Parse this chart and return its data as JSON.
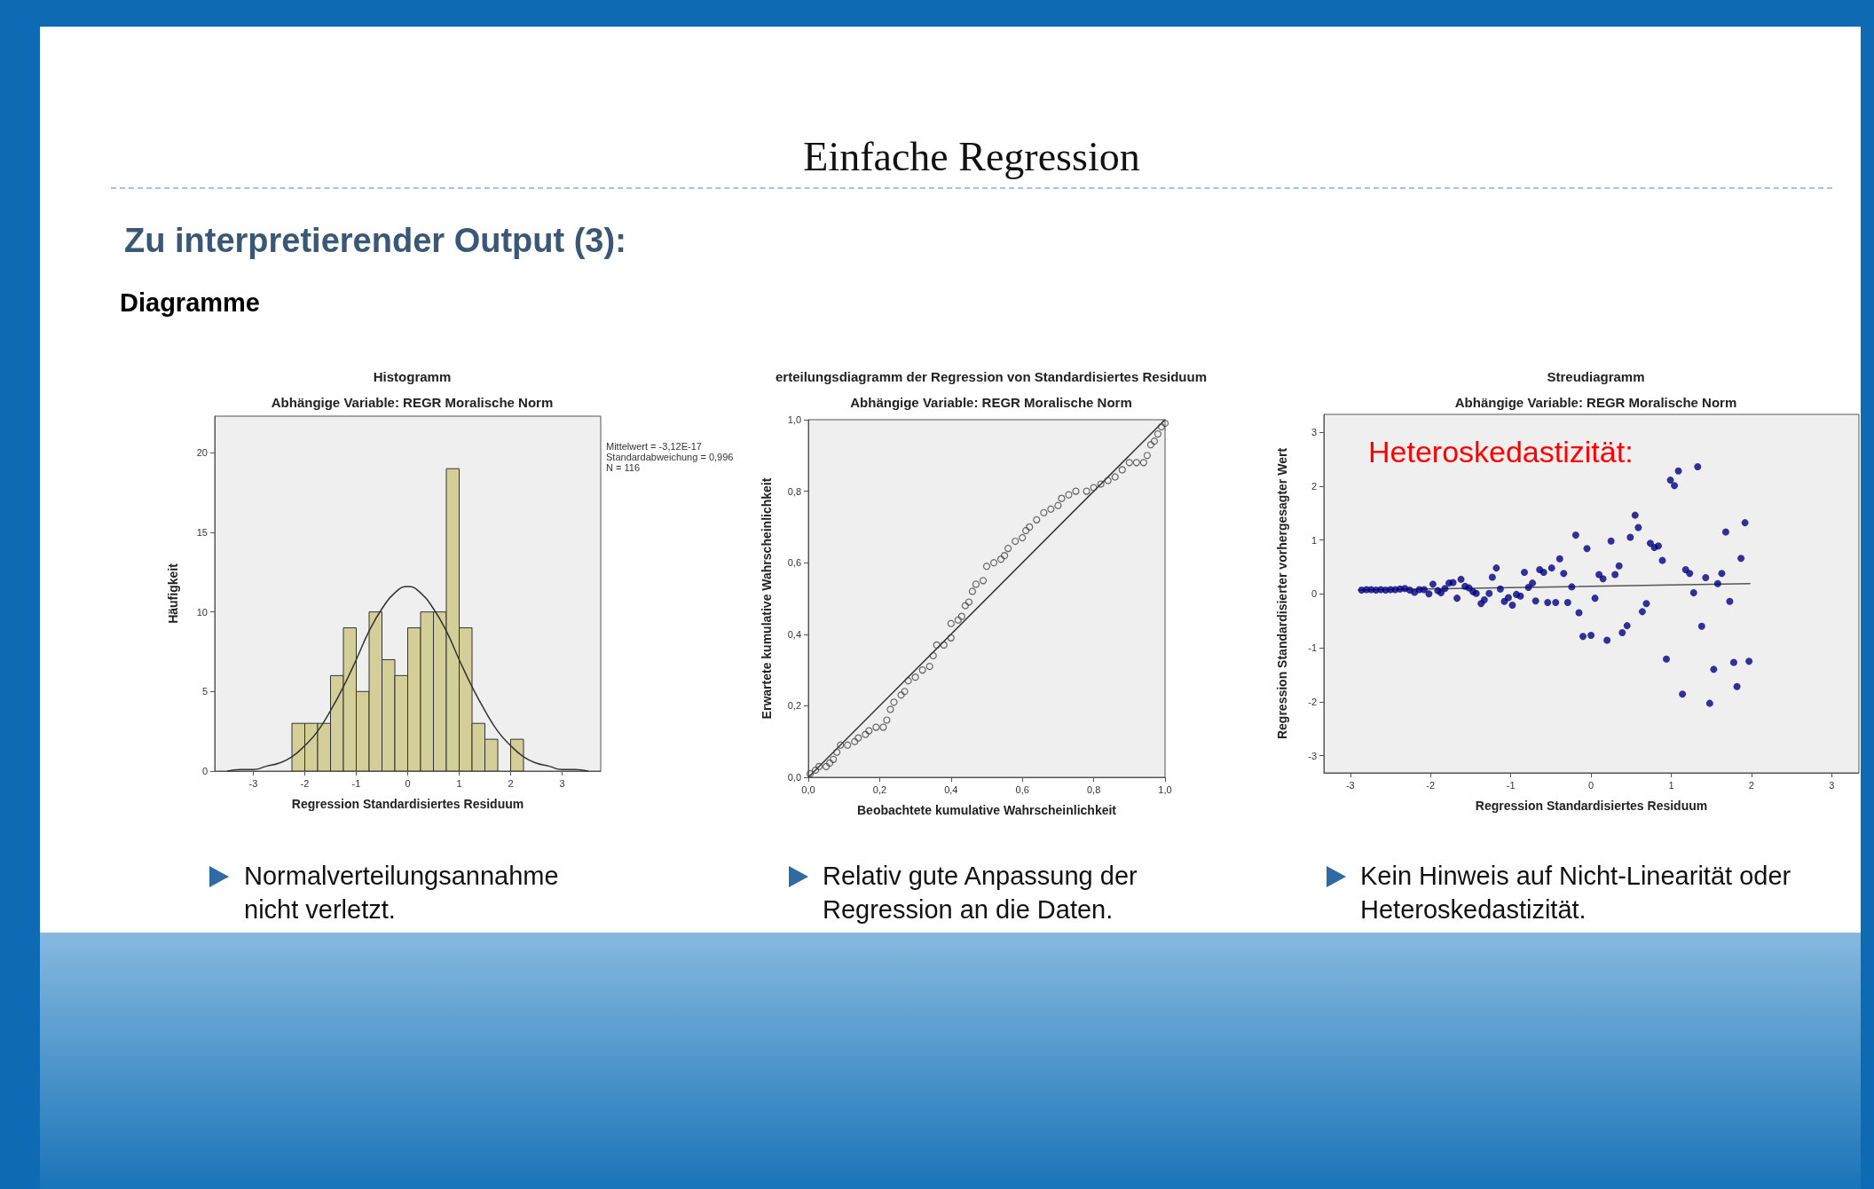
{
  "chart_data": [
    {
      "type": "other",
      "title": "Einfache Regression",
      "subtitle": "Zu interpretierender Output (3):",
      "annotations": [
        "Diagramme"
      ]
    },
    {
      "type": "histogram",
      "title": "Histogramm",
      "subtitle": "Abhängige Variable: REGR Moralische Norm",
      "xlabel": "Regression Standardisiertes Residuum",
      "ylabel": "Häufigkeit",
      "bins": [
        -2.25,
        -2,
        -1.75,
        -1.5,
        -1.25,
        -1,
        -0.75,
        -0.5,
        -0.25,
        0,
        0.25,
        0.5,
        0.75,
        1,
        1.25,
        1.5,
        1.75,
        2,
        2.25
      ],
      "values": [
        3,
        3,
        3,
        6,
        9,
        5,
        10,
        7,
        6,
        9,
        10,
        10,
        19,
        9,
        3,
        2,
        0,
        2
      ],
      "color": "#d4cf98",
      "series": [
        {
          "type": "line",
          "color": "#333333",
          "x": [
            -3.5,
            -3.25,
            -3,
            -2.75,
            -2.5,
            -2.25,
            -2,
            -1.75,
            -1.5,
            -1.25,
            -1,
            -0.75,
            -0.5,
            -0.25,
            0,
            0.25,
            0.5,
            0.75,
            1,
            1.25,
            1.5,
            1.75,
            2,
            2.25,
            2.5,
            2.75,
            3,
            3.25,
            3.5
          ],
          "values": [
            0.0,
            0.1,
            0.1,
            0.3,
            0.5,
            0.9,
            1.6,
            2.5,
            3.8,
            5.3,
            7.0,
            8.8,
            10.2,
            11.2,
            11.6,
            11.2,
            10.2,
            8.8,
            7.0,
            5.3,
            3.8,
            2.5,
            1.6,
            0.9,
            0.5,
            0.3,
            0.1,
            0.1,
            0.0
          ]
        }
      ],
      "xlim": [
        -3.75,
        3.75
      ],
      "xticks": [
        -3,
        -2,
        -1,
        0,
        1,
        2,
        3
      ],
      "ylim": [
        0,
        22.3
      ],
      "yticks": [
        0,
        5,
        10,
        15,
        20
      ],
      "annotations": [
        "Mittelwert = -3,12E-17",
        "Standardabweichung = 0,996",
        "N = 116",
        "Normalverteilungsannahme nicht verletzt."
      ]
    },
    {
      "type": "scatter",
      "title": "erteilungsdiagramm der Regression von Standardisiertes Residuum",
      "subtitle": "Abhängige Variable: REGR Moralische Norm",
      "xlabel": "Beobachtete kumulative Wahrscheinlichkeit",
      "ylabel": "Erwartete kumulative Wahrscheinlichkeit",
      "marker": "circle",
      "series": [
        {
          "type": "scatter",
          "color": "#444444",
          "x": [
            0.005,
            0.02,
            0.03,
            0.05,
            0.06,
            0.07,
            0.08,
            0.09,
            0.11,
            0.13,
            0.14,
            0.16,
            0.17,
            0.19,
            0.21,
            0.22,
            0.23,
            0.24,
            0.26,
            0.27,
            0.28,
            0.3,
            0.32,
            0.34,
            0.35,
            0.36,
            0.38,
            0.4,
            0.4,
            0.42,
            0.43,
            0.44,
            0.45,
            0.46,
            0.47,
            0.49,
            0.5,
            0.52,
            0.54,
            0.55,
            0.56,
            0.58,
            0.6,
            0.61,
            0.62,
            0.64,
            0.66,
            0.68,
            0.7,
            0.71,
            0.73,
            0.75,
            0.78,
            0.8,
            0.82,
            0.84,
            0.86,
            0.88,
            0.9,
            0.92,
            0.94,
            0.95,
            0.96,
            0.97,
            0.98,
            0.99,
            1.0
          ],
          "values": [
            0.01,
            0.02,
            0.03,
            0.03,
            0.04,
            0.05,
            0.07,
            0.09,
            0.09,
            0.1,
            0.11,
            0.12,
            0.13,
            0.14,
            0.14,
            0.16,
            0.19,
            0.21,
            0.23,
            0.24,
            0.27,
            0.28,
            0.3,
            0.31,
            0.34,
            0.37,
            0.37,
            0.39,
            0.43,
            0.44,
            0.45,
            0.48,
            0.49,
            0.52,
            0.54,
            0.55,
            0.59,
            0.6,
            0.61,
            0.62,
            0.64,
            0.66,
            0.67,
            0.69,
            0.7,
            0.72,
            0.74,
            0.75,
            0.76,
            0.78,
            0.79,
            0.8,
            0.8,
            0.81,
            0.82,
            0.83,
            0.84,
            0.86,
            0.88,
            0.88,
            0.88,
            0.9,
            0.93,
            0.94,
            0.96,
            0.98,
            0.99
          ]
        },
        {
          "type": "line",
          "marker": "none",
          "color": "#333333",
          "x": [
            0,
            1
          ],
          "values": [
            0,
            1
          ]
        }
      ],
      "xlim": [
        0,
        1
      ],
      "xticks": [
        {
          "value": 0,
          "label": "0,0"
        },
        {
          "value": 0.2,
          "label": "0,2"
        },
        {
          "value": 0.4,
          "label": "0,4"
        },
        {
          "value": 0.6,
          "label": "0,6"
        },
        {
          "value": 0.8,
          "label": "0,8"
        },
        {
          "value": 1,
          "label": "1,0"
        }
      ],
      "ylim": [
        0,
        1
      ],
      "yticks": [
        {
          "value": 0,
          "label": "0,0"
        },
        {
          "value": 0.2,
          "label": "0,2"
        },
        {
          "value": 0.4,
          "label": "0,4"
        },
        {
          "value": 0.6,
          "label": "0,6"
        },
        {
          "value": 0.8,
          "label": "0,8"
        },
        {
          "value": 1,
          "label": "1,0"
        }
      ],
      "annotations": [
        "Relativ gute Anpassung der Regression an die Daten."
      ]
    },
    {
      "type": "scatter",
      "title": "Streudiagramm",
      "subtitle": "Abhängige Variable: REGR Moralische Norm",
      "xlabel": "Regression Standardisiertes Residuum",
      "ylabel": "Regression Standardisierter vorhergesagter Wert",
      "marker": "circle",
      "series": [
        {
          "type": "scatter",
          "color": "#00007f",
          "x": [
            -2.86,
            -2.8,
            -2.74,
            -2.68,
            -2.62,
            -2.56,
            -2.5,
            -2.44,
            -2.38,
            -2.32,
            -2.26,
            -2.2,
            -2.14,
            -2.08,
            -2.02,
            -1.97,
            -1.91,
            -1.87,
            -1.82,
            -1.77,
            -1.72,
            -1.67,
            -1.62,
            -1.57,
            -1.52,
            -1.47,
            -1.43,
            -1.37,
            -1.33,
            -1.27,
            -1.23,
            -1.18,
            -1.13,
            -1.08,
            -1.03,
            -0.98,
            -0.93,
            -0.88,
            -0.83,
            -0.78,
            -0.73,
            -0.69,
            -0.64,
            -0.59,
            -0.54,
            -0.49,
            -0.44,
            -0.39,
            -0.34,
            -0.29,
            -0.24,
            -0.19,
            -0.15,
            -0.1,
            -0.05,
            0.0,
            0.05,
            0.1,
            0.15,
            0.2,
            0.25,
            0.3,
            0.35,
            0.39,
            0.45,
            0.49,
            0.55,
            0.59,
            0.64,
            0.69,
            0.74,
            0.79,
            0.84,
            0.89,
            0.94,
            0.99,
            1.04,
            1.09,
            1.14,
            1.18,
            1.23,
            1.28,
            1.33,
            1.38,
            1.43,
            1.48,
            1.53,
            1.58,
            1.63,
            1.68,
            1.73,
            1.78,
            1.82,
            1.87,
            1.92,
            1.97
          ],
          "values": [
            0.07,
            0.08,
            0.08,
            0.07,
            0.08,
            0.07,
            0.08,
            0.08,
            0.09,
            0.1,
            0.07,
            0.03,
            0.08,
            0.08,
            0.0,
            0.18,
            0.06,
            0.02,
            0.1,
            0.2,
            0.21,
            -0.08,
            0.27,
            0.14,
            0.11,
            0.04,
            0.01,
            -0.18,
            -0.11,
            0.01,
            0.31,
            0.48,
            0.09,
            -0.14,
            -0.07,
            -0.21,
            -0.01,
            -0.04,
            0.4,
            0.12,
            0.2,
            -0.13,
            0.45,
            0.4,
            -0.16,
            0.48,
            -0.16,
            0.65,
            0.38,
            -0.16,
            0.13,
            1.09,
            -0.35,
            -0.79,
            0.84,
            -0.77,
            -0.08,
            0.36,
            0.28,
            -0.86,
            0.98,
            0.36,
            0.52,
            -0.72,
            -0.59,
            1.05,
            1.46,
            1.23,
            -0.33,
            -0.18,
            0.94,
            0.86,
            0.89,
            0.62,
            -1.21,
            2.11,
            2.01,
            2.28,
            -1.86,
            0.45,
            0.38,
            0.02,
            2.36,
            -0.6,
            0.3,
            -2.03,
            -1.4,
            0.19,
            0.38,
            1.15,
            -0.14,
            -1.27,
            -1.72,
            0.66,
            1.32,
            -1.25
          ]
        },
        {
          "type": "line",
          "marker": "none",
          "color": "#555555",
          "x": [
            -2.9,
            1.98
          ],
          "values": [
            0.07,
            0.19
          ]
        }
      ],
      "xlim": [
        -3.33,
        3.34
      ],
      "xticks": [
        -3,
        -2,
        -1,
        0,
        1,
        2,
        3
      ],
      "ylim": [
        -3.32,
        3.33
      ],
      "yticks": [
        -3,
        -2,
        -1,
        0,
        1,
        2,
        3
      ],
      "annotations": [
        "Heteroskedastizität:",
        "Kein Hinweis auf Nicht-Linearität oder Heteroskedastizität."
      ]
    }
  ]
}
